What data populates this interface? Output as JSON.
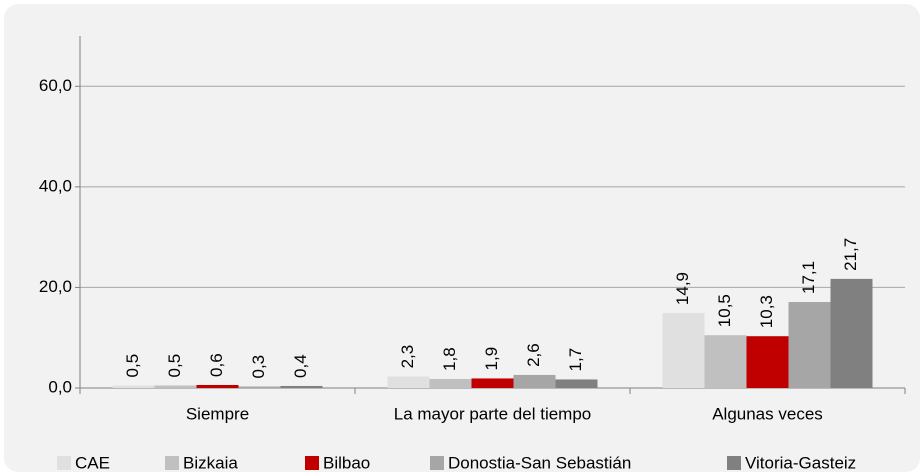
{
  "chart_data": {
    "type": "bar",
    "categories": [
      "Siempre",
      "La mayor parte del tiempo",
      "Algunas veces"
    ],
    "series": [
      {
        "name": "CAE",
        "color": "#e0e0e0",
        "values": [
          0.5,
          2.3,
          14.9
        ],
        "value_labels": [
          "0,5",
          "2,3",
          "14,9"
        ]
      },
      {
        "name": "Bizkaia",
        "color": "#c0c0c0",
        "values": [
          0.5,
          1.8,
          10.5
        ],
        "value_labels": [
          "0,5",
          "1,8",
          "10,5"
        ]
      },
      {
        "name": "Bilbao",
        "color": "#c00000",
        "values": [
          0.6,
          1.9,
          10.3
        ],
        "value_labels": [
          "0,6",
          "1,9",
          "10,3"
        ]
      },
      {
        "name": "Donostia-San Sebastián",
        "color": "#a6a6a6",
        "values": [
          0.3,
          2.6,
          17.1
        ],
        "value_labels": [
          "0,3",
          "2,6",
          "17,1"
        ]
      },
      {
        "name": "Vitoria-Gasteiz",
        "color": "#808080",
        "values": [
          0.4,
          1.7,
          21.7
        ],
        "value_labels": [
          "0,4",
          "1,7",
          "21,7"
        ]
      }
    ],
    "ylim": [
      0,
      70
    ],
    "yticks": [
      {
        "value": 0,
        "label": "0,0"
      },
      {
        "value": 20,
        "label": "20,0"
      },
      {
        "value": 40,
        "label": "40,0"
      },
      {
        "value": 60,
        "label": "60,0"
      }
    ],
    "grid": true,
    "legend": "bottom"
  }
}
